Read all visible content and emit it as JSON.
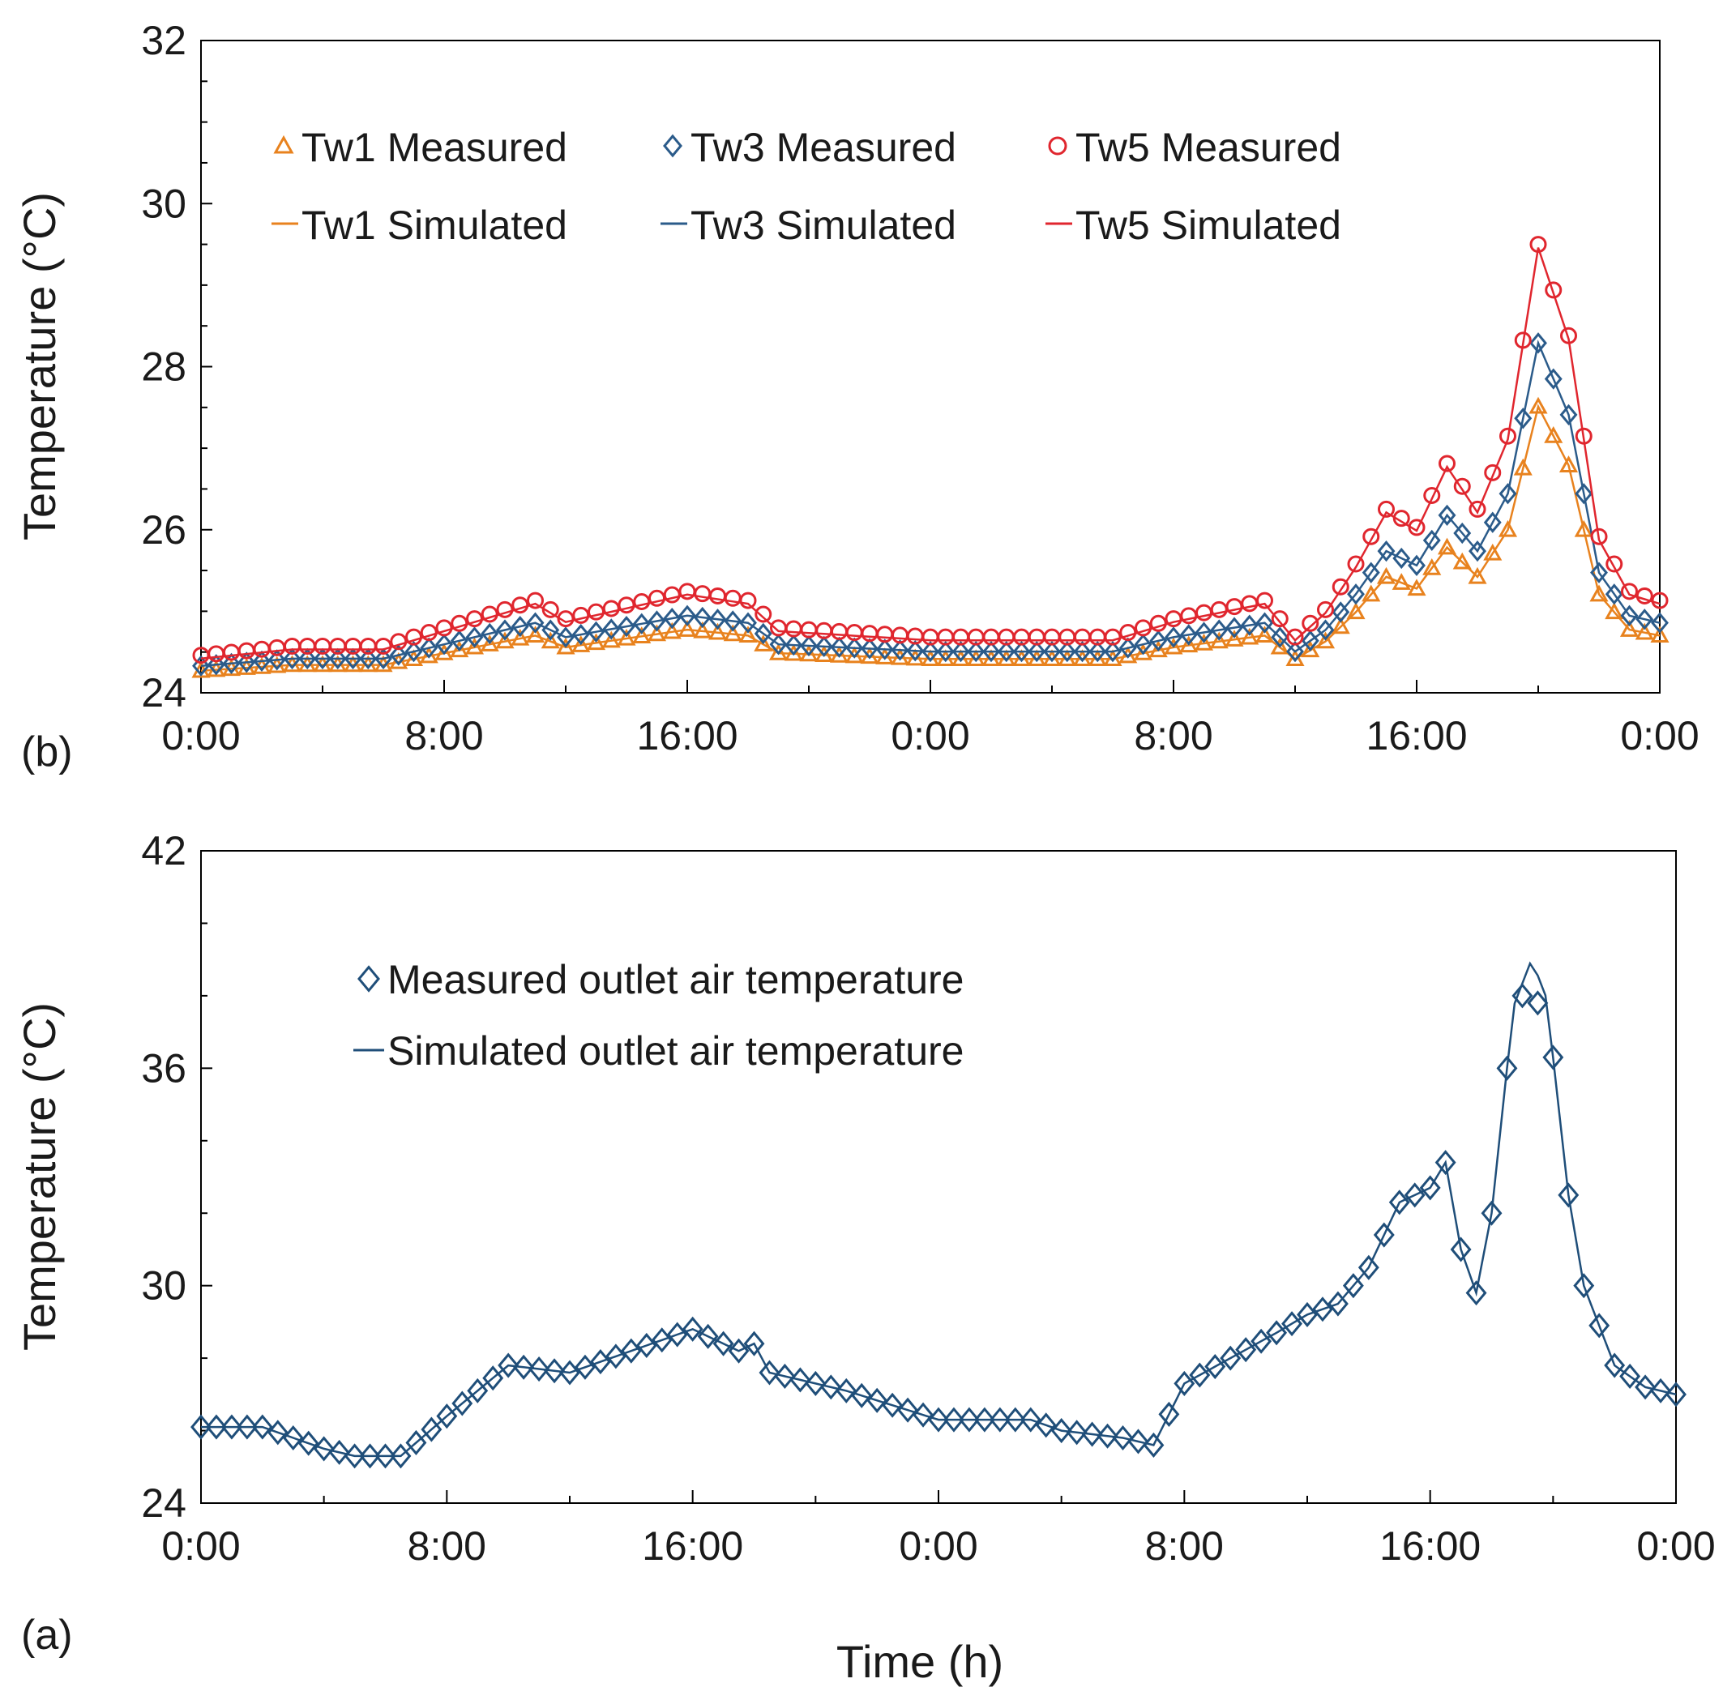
{
  "chart_data": [
    {
      "panel": "(b)",
      "type": "scatter-line",
      "xlabel": "",
      "ylabel": "Temperature (°C)",
      "ylim": [
        24,
        32
      ],
      "yticks": [
        "24",
        "26",
        "28",
        "30",
        "32"
      ],
      "xlim_hours": [
        0,
        48
      ],
      "xticks": [
        "0:00",
        "8:00",
        "16:00",
        "0:00",
        "8:00",
        "16:00",
        "0:00"
      ],
      "legend_position": "top-left",
      "legend": [
        [
          "Tw1 Measured",
          "Tw3 Measured",
          "Tw5 Measured"
        ],
        [
          "Tw1 Simulated",
          "Tw3 Simulated",
          "Tw5 Simulated"
        ]
      ],
      "key_points": [
        [
          0,
          24.3
        ],
        [
          3,
          24.4
        ],
        [
          6,
          24.4
        ],
        [
          8,
          24.6
        ],
        [
          11,
          24.9
        ],
        [
          12,
          24.7
        ],
        [
          16,
          25.0
        ],
        [
          18,
          24.9
        ],
        [
          19,
          24.6
        ],
        [
          24,
          24.5
        ],
        [
          30,
          24.5
        ],
        [
          32,
          24.7
        ],
        [
          35,
          24.9
        ],
        [
          36,
          24.5
        ],
        [
          37,
          24.8
        ],
        [
          38,
          25.3
        ],
        [
          39,
          25.9
        ],
        [
          40,
          25.7
        ],
        [
          41,
          26.4
        ],
        [
          42,
          25.9
        ],
        [
          43,
          26.7
        ],
        [
          44,
          28.8
        ],
        [
          45,
          27.8
        ],
        [
          46,
          25.6
        ],
        [
          47,
          25.0
        ],
        [
          48,
          24.9
        ]
      ],
      "series": [
        {
          "name": "Tw1",
          "color": "#E8821E",
          "marker": "triangle",
          "offset": -0.1,
          "scale": 0.72
        },
        {
          "name": "Tw3",
          "color": "#2B5B8A",
          "marker": "diamond",
          "offset": 0.0,
          "scale": 0.88
        },
        {
          "name": "Tw5",
          "color": "#E0262E",
          "marker": "circle",
          "offset": 0.15,
          "scale": 1.12
        }
      ]
    },
    {
      "panel": "(a)",
      "type": "scatter-line",
      "xlabel": "Time (h)",
      "ylabel": "Temperature (°C)",
      "ylim": [
        24,
        42
      ],
      "yticks": [
        "24",
        "30",
        "36",
        "42"
      ],
      "xlim_hours": [
        0,
        48
      ],
      "xticks": [
        "0:00",
        "8:00",
        "16:00",
        "0:00",
        "8:00",
        "16:00",
        "0:00"
      ],
      "legend_position": "top-left",
      "legend": [
        "Measured outlet air temperature",
        "Simulated outlet air temperature"
      ],
      "color": "#1F4E79",
      "key_points": [
        [
          0,
          26.1
        ],
        [
          2,
          26.1
        ],
        [
          4,
          25.5
        ],
        [
          5,
          25.3
        ],
        [
          6.5,
          25.3
        ],
        [
          8,
          26.4
        ],
        [
          10,
          27.8
        ],
        [
          12,
          27.6
        ],
        [
          16,
          28.8
        ],
        [
          17.5,
          28.2
        ],
        [
          18,
          28.4
        ],
        [
          18.5,
          27.6
        ],
        [
          21,
          27.1
        ],
        [
          24,
          26.3
        ],
        [
          27,
          26.3
        ],
        [
          28,
          26.0
        ],
        [
          30,
          25.8
        ],
        [
          31,
          25.6
        ],
        [
          32,
          27.3
        ],
        [
          35,
          28.7
        ],
        [
          36,
          29.2
        ],
        [
          37,
          29.5
        ],
        [
          38,
          30.5
        ],
        [
          39,
          32.3
        ],
        [
          40,
          32.7
        ],
        [
          40.5,
          33.4
        ],
        [
          41,
          31.0
        ],
        [
          41.5,
          29.8
        ],
        [
          42,
          32.0
        ],
        [
          42.5,
          36.0
        ],
        [
          43,
          38.0
        ],
        [
          43.5,
          37.8
        ],
        [
          44,
          36.3
        ],
        [
          44.5,
          32.5
        ],
        [
          45,
          30.0
        ],
        [
          46,
          27.8
        ],
        [
          47,
          27.2
        ],
        [
          48,
          27.0
        ]
      ],
      "peak": [
        43.3,
        39.0
      ]
    }
  ]
}
